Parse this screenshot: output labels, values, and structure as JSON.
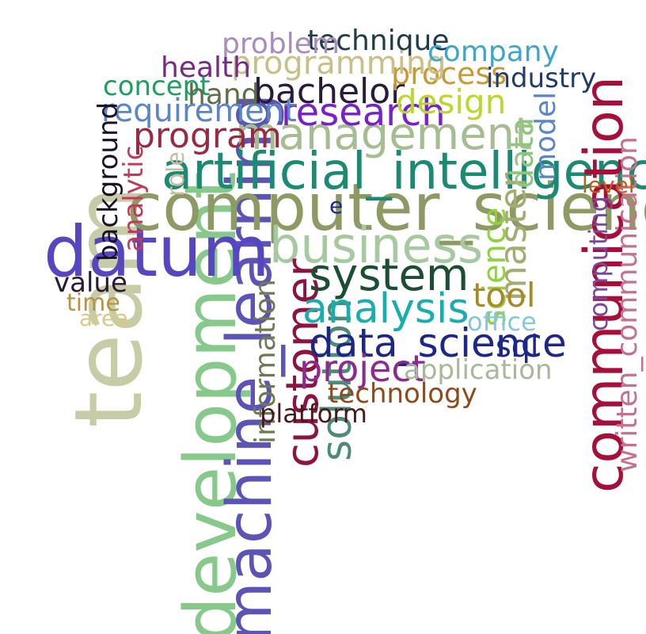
{
  "words": {
    "team": {
      "text": "team",
      "color": "#c8cca6"
    },
    "development": {
      "text": "development",
      "color": "#86c98a"
    },
    "machine_learning": {
      "text": "machine_learning",
      "color": "#5b54b6"
    },
    "datum": {
      "text": "datum",
      "color": "#5646c0"
    },
    "computer_science": {
      "text": "computer_science",
      "color": "#8e9a64"
    },
    "artificial_intelligence": {
      "text": "artificial_intelligence",
      "color": "#1a8a72"
    },
    "communication": {
      "text": "communication",
      "color": "#a80e3a"
    },
    "business": {
      "text": "business",
      "color": "#a6c9a0"
    },
    "management": {
      "text": "management",
      "color": "#a6bd92"
    },
    "customer": {
      "text": "customer",
      "color": "#8f1340"
    },
    "solution": {
      "text": "solution",
      "color": "#4e8a78"
    },
    "system": {
      "text": "system",
      "color": "#1b4e33"
    },
    "analysis": {
      "text": "analysis",
      "color": "#18aeb0"
    },
    "data_science": {
      "text": "data_science",
      "color": "#1c2788"
    },
    "research": {
      "text": "research",
      "color": "#7a20c8"
    },
    "bachelor": {
      "text": "bachelor",
      "color": "#2a1a3c"
    },
    "project": {
      "text": "project",
      "color": "#8e2a8e"
    },
    "written_communication": {
      "text": "written_communication",
      "color": "#c4728c"
    },
    "master": {
      "text": "master",
      "color": "#a3ad72"
    },
    "science": {
      "text": "science",
      "color": "#8fd23c"
    },
    "information": {
      "text": "information",
      "color": "#6e7a54"
    },
    "program": {
      "text": "program",
      "color": "#9a2a42"
    },
    "requirement": {
      "text": "requirement",
      "color": "#5a86c8"
    },
    "design": {
      "text": "design",
      "color": "#b8d82c"
    },
    "data": {
      "text": "data",
      "color": "#8ec77c"
    },
    "model": {
      "text": "model",
      "color": "#5a86c8"
    },
    "computing": {
      "text": "computing",
      "color": "#7a4a98"
    },
    "tool": {
      "text": "tool",
      "color": "#a68a26"
    },
    "background": {
      "text": "background",
      "color": "#1a1028"
    },
    "analytic": {
      "text": "analytic",
      "color": "#c23a5a"
    },
    "role": {
      "text": "role",
      "color": "#c8bca0"
    },
    "process": {
      "text": "process",
      "color": "#c89a34"
    },
    "programming": {
      "text": "programming",
      "color": "#c8c086"
    },
    "technique": {
      "text": "technique",
      "color": "#1f3c4a"
    },
    "problem": {
      "text": "problem",
      "color": "#a88cc0"
    },
    "company": {
      "text": "company",
      "color": "#3ea6c8"
    },
    "industry": {
      "text": "industry",
      "color": "#1f3c6a"
    },
    "health": {
      "text": "health",
      "color": "#7a2888"
    },
    "concept": {
      "text": "concept",
      "color": "#1ca060"
    },
    "hand": {
      "text": "hand",
      "color": "#5e6e48"
    },
    "value": {
      "text": "value",
      "color": "#2a1838"
    },
    "time": {
      "text": "time",
      "color": "#b89440"
    },
    "area": {
      "text": "area",
      "color": "#d8ca86"
    },
    "office": {
      "text": "office",
      "color": "#86c8d8"
    },
    "sql": {
      "text": "sql",
      "color": "#1c2788"
    },
    "application": {
      "text": "application",
      "color": "#a8b89a"
    },
    "technology": {
      "text": "technology",
      "color": "#8e4a1a"
    },
    "platform": {
      "text": "platform",
      "color": "#4a1a1a"
    },
    "level": {
      "text": "level",
      "color": "#b8601a"
    },
    "e": {
      "text": "e",
      "color": "#1c2788"
    }
  }
}
